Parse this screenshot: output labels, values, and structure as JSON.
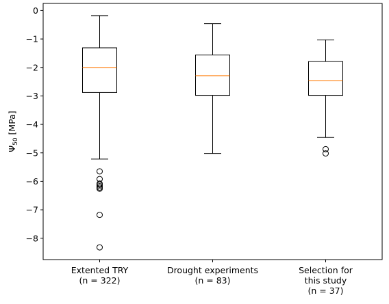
{
  "chart_data": {
    "type": "box",
    "ylabel_base": "Ψ",
    "ylabel_sub": "50",
    "ylabel_unit": " [MPa]",
    "ylim": [
      -8.75,
      0.25
    ],
    "yticks": [
      0,
      -1,
      -2,
      -3,
      -4,
      -5,
      -6,
      -7,
      -8
    ],
    "ytick_labels": [
      "0",
      "−1",
      "−2",
      "−3",
      "−4",
      "−5",
      "−6",
      "−7",
      "−8"
    ],
    "colors": {
      "box": "#000000",
      "median": "#ff7f0e",
      "background": "#ffffff"
    },
    "boxes": [
      {
        "label_lines": [
          "Extented TRY",
          "(n = 322)"
        ],
        "whisker_low": -5.22,
        "q1": -2.88,
        "median": -2.0,
        "q3": -1.31,
        "whisker_high": -0.18,
        "outliers": [
          -5.65,
          -5.92,
          -6.08,
          -6.12,
          -6.17,
          -6.22,
          -6.26,
          -7.18,
          -8.32
        ]
      },
      {
        "label_lines": [
          "Drought experiments",
          "(n = 83)"
        ],
        "whisker_low": -5.02,
        "q1": -2.98,
        "median": -2.29,
        "q3": -1.56,
        "whisker_high": -0.46,
        "outliers": []
      },
      {
        "label_lines": [
          "Selection for",
          "this study",
          "(n = 37)"
        ],
        "whisker_low": -4.46,
        "q1": -2.98,
        "median": -2.46,
        "q3": -1.79,
        "whisker_high": -1.03,
        "outliers": [
          -4.87,
          -5.02
        ]
      }
    ]
  }
}
